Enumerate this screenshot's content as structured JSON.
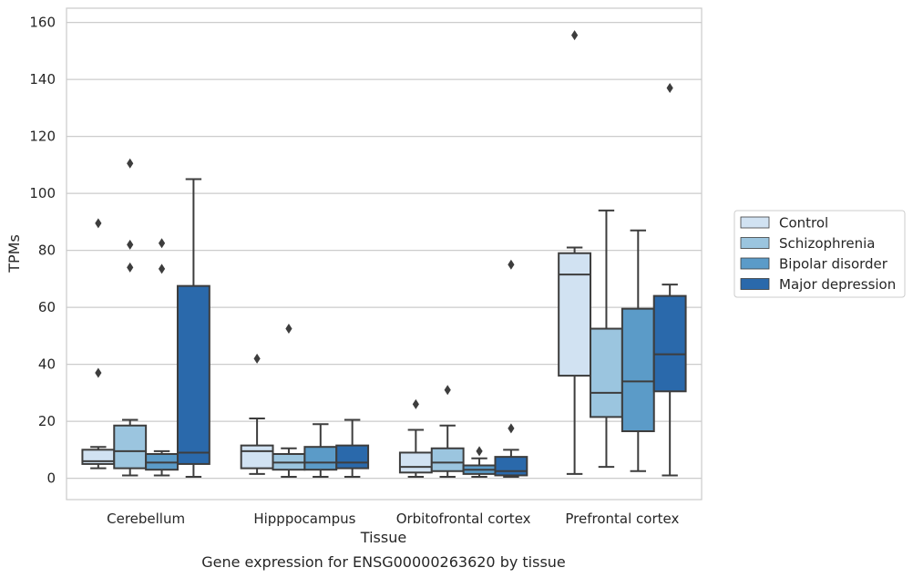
{
  "chart_data": {
    "type": "box",
    "title": "Gene expression for ENSG00000263620 by tissue",
    "xlabel": "Tissue",
    "ylabel": "TPMs",
    "ylim": [
      -7.5,
      165
    ],
    "yticks": [
      0,
      20,
      40,
      60,
      80,
      100,
      120,
      140,
      160
    ],
    "grid": "horizontal",
    "legend_position": "right",
    "categories": [
      "Cerebellum",
      "Hipppocampus",
      "Orbitofrontal cortex",
      "Prefrontal cortex"
    ],
    "series": [
      {
        "name": "Control",
        "color": "#d1e2f2",
        "boxes": [
          {
            "whisker_low": 3.5,
            "q1": 5,
            "median": 6,
            "q3": 10,
            "whisker_high": 11,
            "outliers": [
              37,
              89.5
            ]
          },
          {
            "whisker_low": 1.5,
            "q1": 3.5,
            "median": 9.5,
            "q3": 11.5,
            "whisker_high": 21,
            "outliers": [
              42
            ]
          },
          {
            "whisker_low": 0.5,
            "q1": 2,
            "median": 4,
            "q3": 9,
            "whisker_high": 17,
            "outliers": [
              26
            ]
          },
          {
            "whisker_low": 1.5,
            "q1": 36,
            "median": 71.5,
            "q3": 79,
            "whisker_high": 81,
            "outliers": [
              155.5
            ]
          }
        ]
      },
      {
        "name": "Schizophrenia",
        "color": "#9bc5df",
        "boxes": [
          {
            "whisker_low": 1,
            "q1": 3.5,
            "median": 9.5,
            "q3": 18.5,
            "whisker_high": 20.5,
            "outliers": [
              74,
              82,
              110.5
            ]
          },
          {
            "whisker_low": 0.5,
            "q1": 3,
            "median": 5.5,
            "q3": 8.5,
            "whisker_high": 10.5,
            "outliers": [
              52.5
            ]
          },
          {
            "whisker_low": 0.5,
            "q1": 2.5,
            "median": 5.5,
            "q3": 10.5,
            "whisker_high": 18.5,
            "outliers": [
              31
            ]
          },
          {
            "whisker_low": 4,
            "q1": 21.5,
            "median": 30,
            "q3": 52.5,
            "whisker_high": 94,
            "outliers": []
          }
        ]
      },
      {
        "name": "Bipolar disorder",
        "color": "#5b9bc8",
        "boxes": [
          {
            "whisker_low": 1,
            "q1": 3,
            "median": 5.5,
            "q3": 8.5,
            "whisker_high": 9.5,
            "outliers": [
              73.5,
              82.5
            ]
          },
          {
            "whisker_low": 0.5,
            "q1": 3,
            "median": 5.5,
            "q3": 11,
            "whisker_high": 19,
            "outliers": []
          },
          {
            "whisker_low": 0.5,
            "q1": 1.5,
            "median": 3,
            "q3": 4.5,
            "whisker_high": 7,
            "outliers": [
              9.5
            ]
          },
          {
            "whisker_low": 2.5,
            "q1": 16.5,
            "median": 34,
            "q3": 59.5,
            "whisker_high": 87,
            "outliers": []
          }
        ]
      },
      {
        "name": "Major depression",
        "color": "#2a69ab",
        "boxes": [
          {
            "whisker_low": 0.5,
            "q1": 5,
            "median": 9,
            "q3": 67.5,
            "whisker_high": 105,
            "outliers": []
          },
          {
            "whisker_low": 0.5,
            "q1": 3.5,
            "median": 5.5,
            "q3": 11.5,
            "whisker_high": 20.5,
            "outliers": []
          },
          {
            "whisker_low": 0.5,
            "q1": 1,
            "median": 2.5,
            "q3": 7.5,
            "whisker_high": 10,
            "outliers": [
              17.5,
              75
            ]
          },
          {
            "whisker_low": 1,
            "q1": 30.5,
            "median": 43.5,
            "q3": 64,
            "whisker_high": 68,
            "outliers": [
              137
            ]
          }
        ]
      }
    ]
  }
}
